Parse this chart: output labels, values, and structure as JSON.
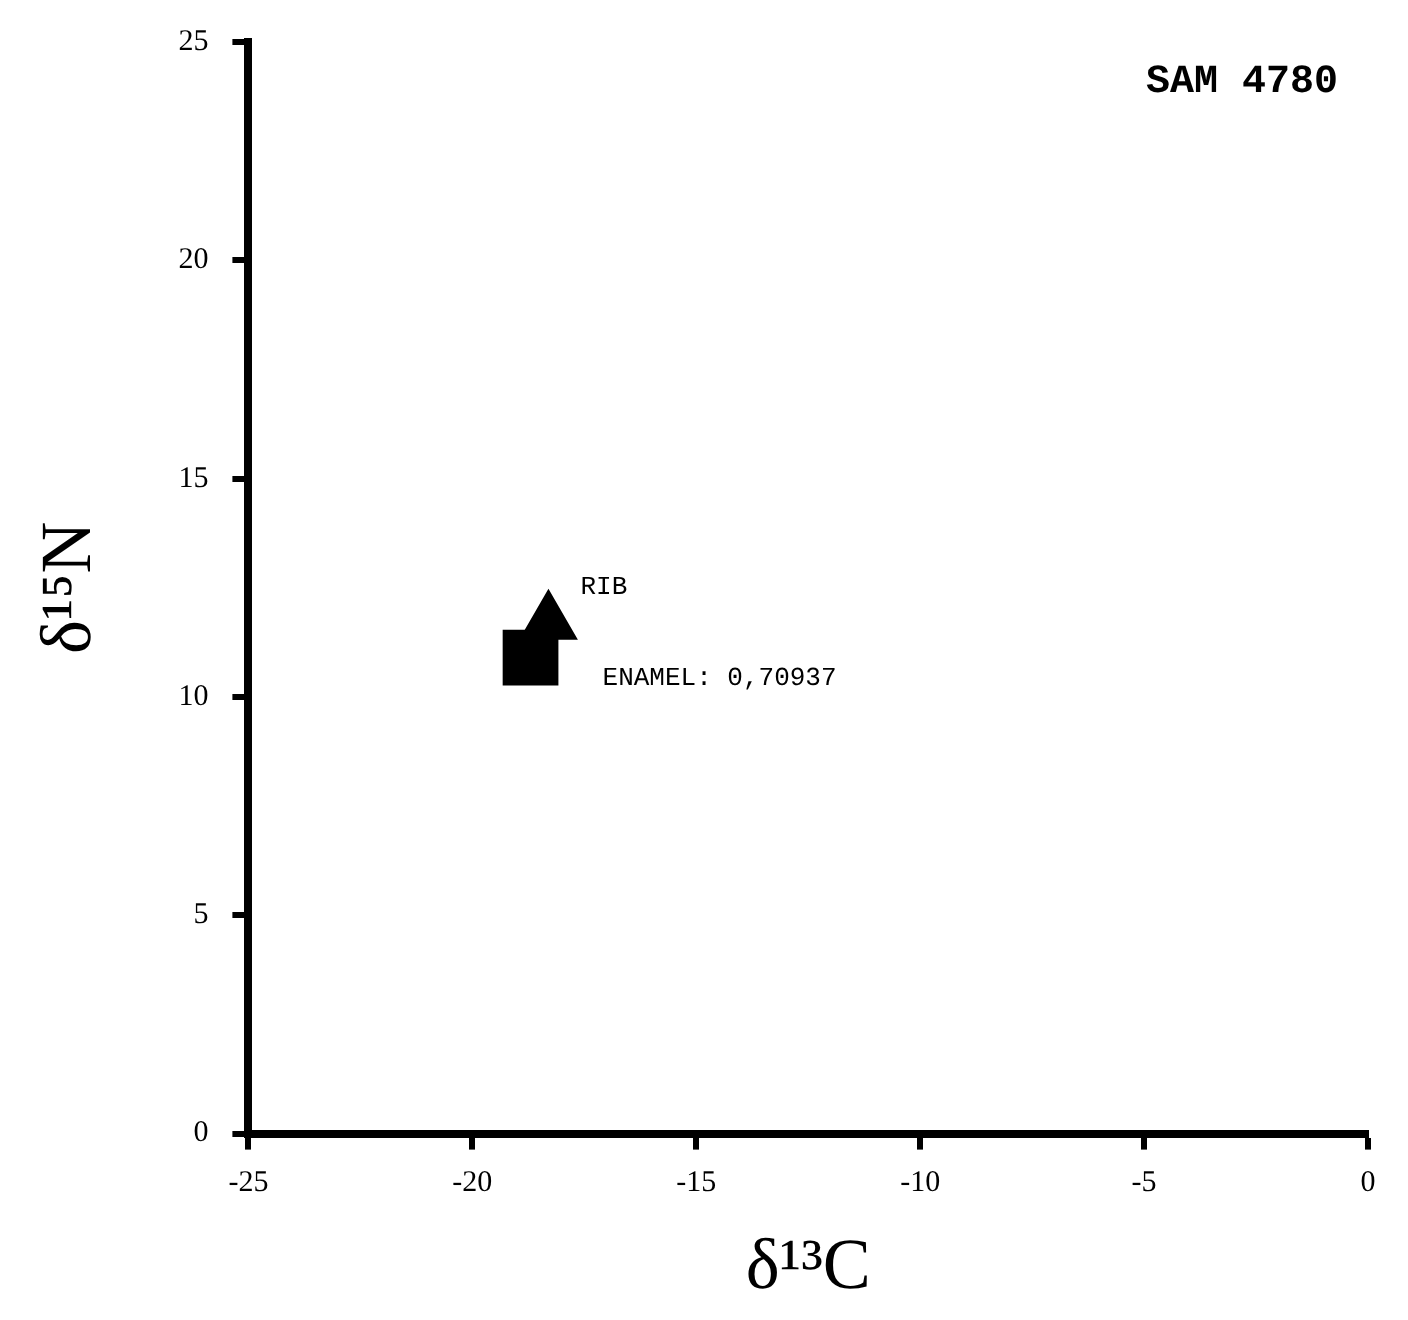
{
  "chart_data": {
    "type": "scatter",
    "title": "SAM 4780",
    "xlabel": "δ¹³C",
    "ylabel": "δ¹⁵N",
    "series": [
      {
        "x": [
          -18.7
        ],
        "values": [
          10.9
        ],
        "color": "#000000",
        "marker": "square"
      },
      {
        "x": [
          -18.3
        ],
        "values": [
          11.7
        ],
        "color": "#000000",
        "marker": "triangle"
      }
    ],
    "annotations": [
      {
        "text": "RIB",
        "x": -18.3,
        "y": 11.7
      },
      {
        "text": "ENAMEL: 0,70937",
        "x": -18.7,
        "y": 10.9
      }
    ],
    "xlim": [
      -25,
      0
    ],
    "xticks": [
      -25,
      -20,
      -15,
      -10,
      -5,
      0
    ],
    "ylim": [
      0,
      25
    ],
    "yticks": [
      0,
      5,
      10,
      15,
      20,
      25
    ],
    "grid": false,
    "legend": false
  }
}
